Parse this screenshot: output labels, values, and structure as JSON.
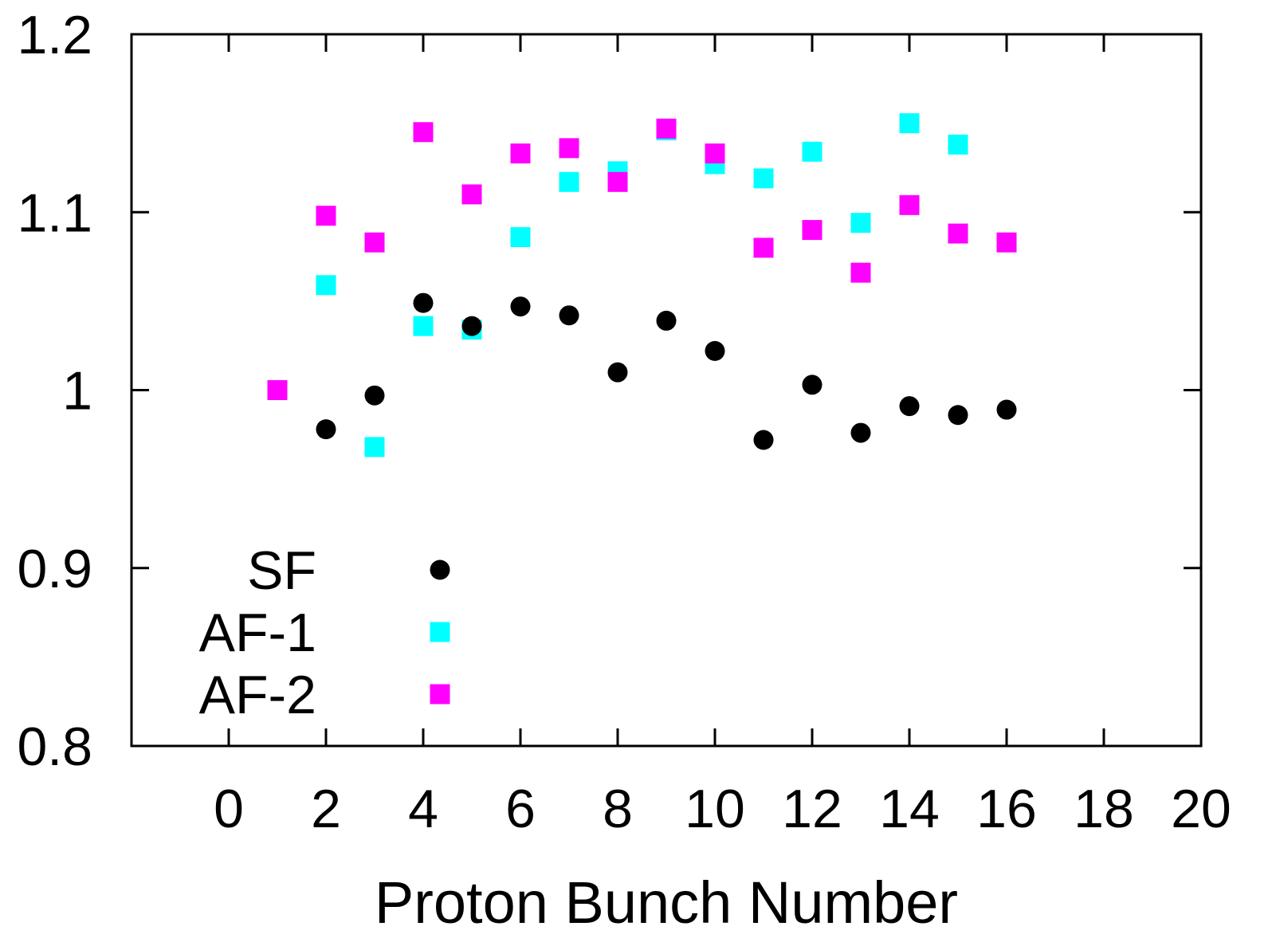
{
  "chart_data": {
    "type": "scatter",
    "title": "",
    "xlabel": "Proton Bunch Number",
    "ylabel": "",
    "xlim": [
      -2,
      20
    ],
    "ylim": [
      0.8,
      1.2
    ],
    "xticks": [
      "0",
      "2",
      "4",
      "6",
      "8",
      "10",
      "12",
      "14",
      "16",
      "18",
      "20"
    ],
    "yticks": [
      "0.8",
      "0.9",
      "1",
      "1.1",
      "1.2"
    ],
    "legend_position": "bottom-left",
    "grid": false,
    "series": [
      {
        "name": "SF",
        "marker": "circle",
        "color": "#000000",
        "points": [
          [
            2,
            0.978
          ],
          [
            3,
            0.997
          ],
          [
            4,
            1.049
          ],
          [
            5,
            1.036
          ],
          [
            6,
            1.047
          ],
          [
            7,
            1.042
          ],
          [
            8,
            1.01
          ],
          [
            9,
            1.039
          ],
          [
            10,
            1.022
          ],
          [
            11,
            0.972
          ],
          [
            12,
            1.003
          ],
          [
            13,
            0.976
          ],
          [
            14,
            0.991
          ],
          [
            15,
            0.986
          ],
          [
            16,
            0.989
          ]
        ]
      },
      {
        "name": "AF-1",
        "marker": "square",
        "color": "#00ffff",
        "points": [
          [
            2,
            1.059
          ],
          [
            3,
            0.968
          ],
          [
            4,
            1.036
          ],
          [
            5,
            1.034
          ],
          [
            6,
            1.086
          ],
          [
            7,
            1.117
          ],
          [
            8,
            1.123
          ],
          [
            9,
            1.146
          ],
          [
            10,
            1.127
          ],
          [
            11,
            1.119
          ],
          [
            12,
            1.134
          ],
          [
            13,
            1.094
          ],
          [
            14,
            1.15
          ],
          [
            15,
            1.138
          ]
        ]
      },
      {
        "name": "AF-2",
        "marker": "square",
        "color": "#ff00ff",
        "points": [
          [
            1,
            1.0
          ],
          [
            2,
            1.098
          ],
          [
            3,
            1.083
          ],
          [
            4,
            1.145
          ],
          [
            5,
            1.11
          ],
          [
            6,
            1.133
          ],
          [
            7,
            1.136
          ],
          [
            8,
            1.117
          ],
          [
            9,
            1.147
          ],
          [
            10,
            1.133
          ],
          [
            11,
            1.08
          ],
          [
            12,
            1.09
          ],
          [
            13,
            1.066
          ],
          [
            14,
            1.104
          ],
          [
            15,
            1.088
          ],
          [
            16,
            1.083
          ]
        ]
      }
    ]
  }
}
